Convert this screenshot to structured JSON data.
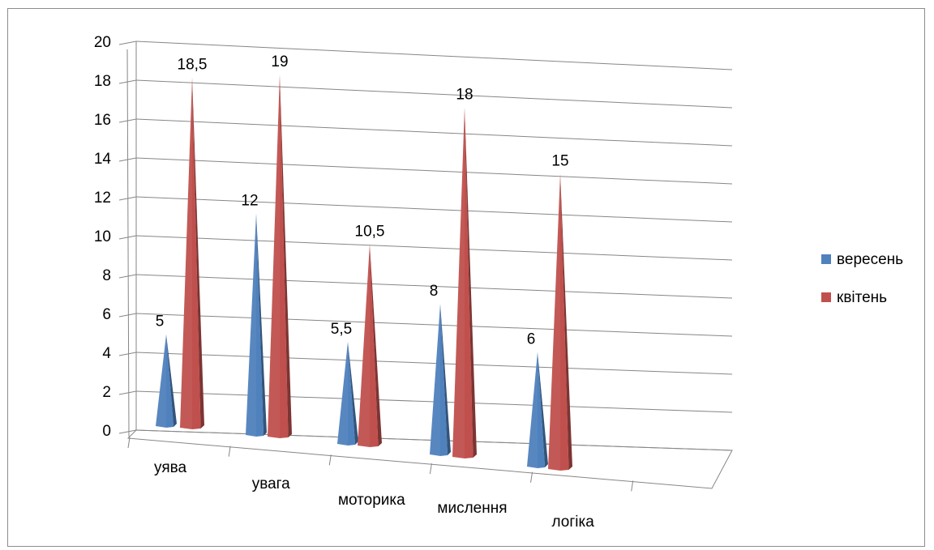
{
  "chart_data": {
    "type": "bar",
    "style": "3d-cone",
    "categories": [
      "уява",
      "увага",
      "моторика",
      "мислення",
      "логіка"
    ],
    "series": [
      {
        "name": "вересень",
        "values": [
          5,
          12,
          5.5,
          8,
          6
        ],
        "labels": [
          "5",
          "12",
          "5,5",
          "8",
          "6"
        ],
        "color": "#4f81bd"
      },
      {
        "name": "квітень",
        "values": [
          18.5,
          19,
          10.5,
          18,
          15
        ],
        "labels": [
          "18,5",
          "19",
          "10,5",
          "18",
          "15"
        ],
        "color": "#c0504d"
      }
    ],
    "y_ticks": [
      "0",
      "2",
      "4",
      "6",
      "8",
      "10",
      "12",
      "14",
      "16",
      "18",
      "20"
    ],
    "ylim": [
      0,
      20
    ],
    "grid": true,
    "legend_position": "right"
  }
}
